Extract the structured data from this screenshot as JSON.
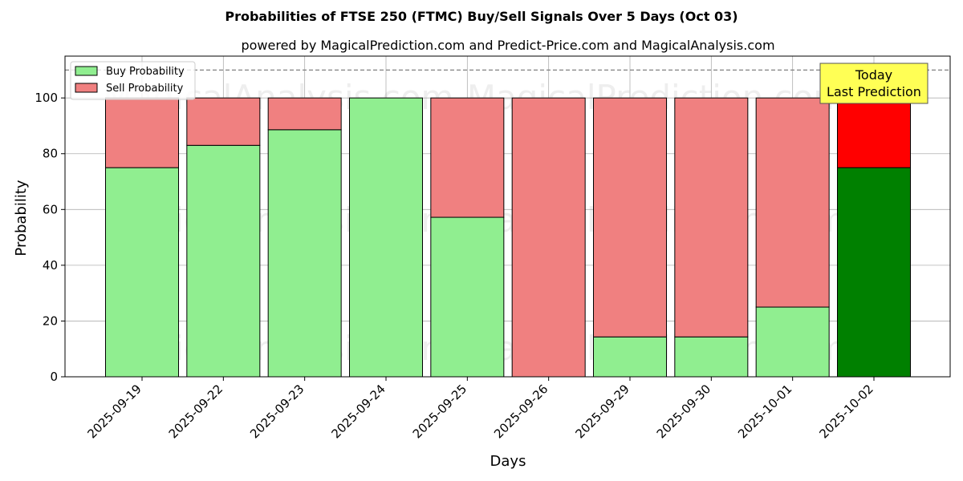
{
  "chart_data": {
    "type": "bar",
    "stacked": true,
    "title": "Probabilities of FTSE 250 (FTMC) Buy/Sell Signals Over 5 Days (Oct 03)",
    "subtitle": "powered by MagicalPrediction.com and Predict-Price.com and MagicalAnalysis.com",
    "xlabel": "Days",
    "ylabel": "Probability",
    "ylim": [
      0,
      115
    ],
    "yticks": [
      0,
      20,
      40,
      60,
      80,
      100
    ],
    "categories": [
      "2025-09-19",
      "2025-09-22",
      "2025-09-23",
      "2025-09-24",
      "2025-09-25",
      "2025-09-26",
      "2025-09-29",
      "2025-09-30",
      "2025-10-01",
      "2025-10-02"
    ],
    "series": [
      {
        "name": "Buy Probability",
        "values": [
          75,
          83,
          88.6,
          100,
          57.2,
          0,
          14.3,
          14.3,
          25,
          75
        ],
        "color": "#90ee90",
        "highlight_color": "#008000"
      },
      {
        "name": "Sell Probability",
        "values": [
          25,
          17,
          11.4,
          0,
          42.8,
          100,
          85.7,
          85.7,
          75,
          25
        ],
        "color": "#f08080",
        "highlight_color": "#ff0000"
      }
    ],
    "highlight_index": 9,
    "reference_line": {
      "y": 110,
      "style": "dashed",
      "color": "#808080"
    },
    "annotation": {
      "lines": [
        "Today",
        "Last Prediction"
      ],
      "background": "#ffff55"
    },
    "legend_position": "top-left",
    "grid": true,
    "watermarks": [
      "MagicalAnalysis.com",
      "MagicalPrediction.com"
    ]
  }
}
